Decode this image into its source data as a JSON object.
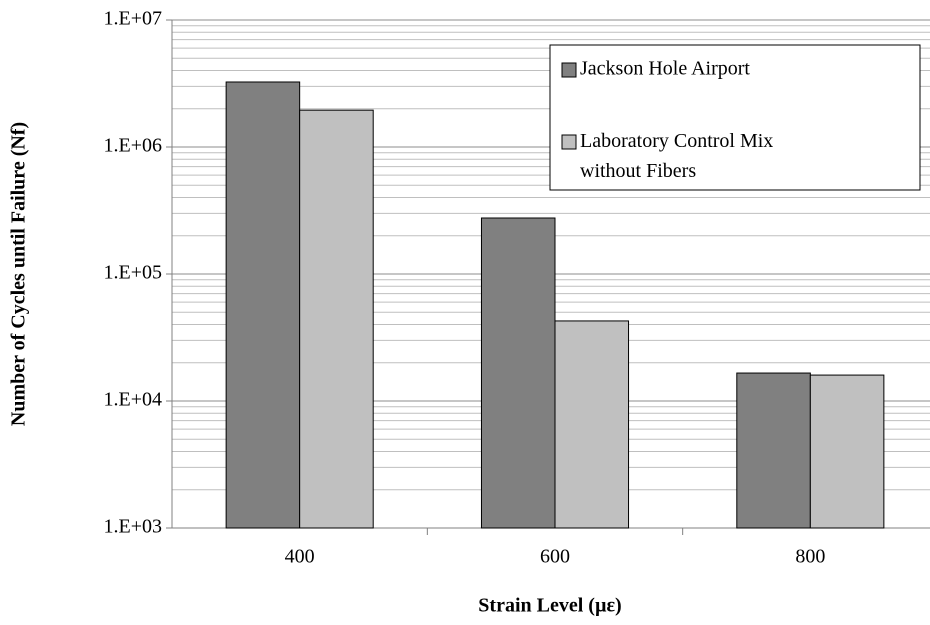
{
  "chart_data": {
    "type": "bar",
    "x_label": "Strain Level (µε)",
    "y_label": "Number of Cycles until Failure (Nf)",
    "categories": [
      "400",
      "600",
      "800"
    ],
    "series": [
      {
        "name": "Jackson Hole Airport",
        "color": "#808080",
        "values": [
          3250000,
          276000,
          16600
        ]
      },
      {
        "name": "Laboratory Control Mix without Fibers",
        "color": "#c0c0c0",
        "values": [
          1950000,
          42700,
          16000
        ]
      }
    ],
    "ylim": [
      1000,
      10000000
    ],
    "yticks": [
      {
        "value": 1000,
        "label": "1.E+03"
      },
      {
        "value": 10000,
        "label": "1.E+04"
      },
      {
        "value": 100000,
        "label": "1.E+05"
      },
      {
        "value": 1000000,
        "label": "1.E+06"
      },
      {
        "value": 10000000,
        "label": "1.E+07"
      }
    ],
    "y_log": true,
    "grid": true,
    "minor_grid": true,
    "legend": "upper right"
  }
}
